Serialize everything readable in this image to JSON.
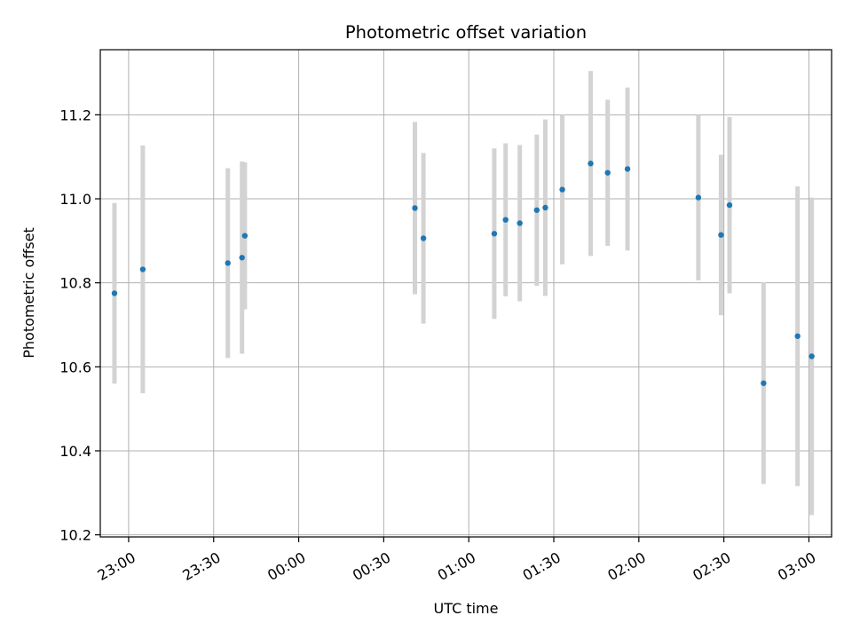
{
  "chart_data": {
    "type": "scatter",
    "title": "Photometric offset variation",
    "xlabel": "UTC time",
    "ylabel": "Photometric offset",
    "x_axis_type": "time",
    "xlim": [
      "22:50",
      "03:08"
    ],
    "ylim": [
      10.195,
      11.355
    ],
    "x_ticks": [
      "23:00",
      "23:30",
      "00:00",
      "00:30",
      "01:00",
      "01:30",
      "02:00",
      "02:30",
      "03:00"
    ],
    "y_ticks": [
      "10.2",
      "10.4",
      "10.6",
      "10.8",
      "11.0",
      "11.2"
    ],
    "y_tick_values": [
      10.2,
      10.4,
      10.6,
      10.8,
      11.0,
      11.2
    ],
    "grid": true,
    "marker_color": "#1f77b4",
    "errorbar_color": "#d3d3d3",
    "points": [
      {
        "time": "22:55",
        "y": 10.775,
        "err": 0.215
      },
      {
        "time": "23:05",
        "y": 10.832,
        "err": 0.295
      },
      {
        "time": "23:35",
        "y": 10.847,
        "err": 0.226
      },
      {
        "time": "23:40",
        "y": 10.86,
        "err": 0.229
      },
      {
        "time": "23:41",
        "y": 10.912,
        "err": 0.175
      },
      {
        "time": "00:41",
        "y": 10.978,
        "err": 0.205
      },
      {
        "time": "00:44",
        "y": 10.906,
        "err": 0.203
      },
      {
        "time": "01:09",
        "y": 10.917,
        "err": 0.203
      },
      {
        "time": "01:13",
        "y": 10.95,
        "err": 0.182
      },
      {
        "time": "01:18",
        "y": 10.942,
        "err": 0.186
      },
      {
        "time": "01:24",
        "y": 10.973,
        "err": 0.18
      },
      {
        "time": "01:27",
        "y": 10.979,
        "err": 0.21
      },
      {
        "time": "01:33",
        "y": 11.022,
        "err": 0.178
      },
      {
        "time": "01:43",
        "y": 11.084,
        "err": 0.22
      },
      {
        "time": "01:49",
        "y": 11.062,
        "err": 0.174
      },
      {
        "time": "01:56",
        "y": 11.071,
        "err": 0.194
      },
      {
        "time": "02:21",
        "y": 11.003,
        "err": 0.197
      },
      {
        "time": "02:29",
        "y": 10.914,
        "err": 0.191
      },
      {
        "time": "02:32",
        "y": 10.985,
        "err": 0.21
      },
      {
        "time": "02:44",
        "y": 10.561,
        "err": 0.24
      },
      {
        "time": "02:56",
        "y": 10.673,
        "err": 0.357
      },
      {
        "time": "03:01",
        "y": 10.625,
        "err": 0.378
      }
    ]
  }
}
